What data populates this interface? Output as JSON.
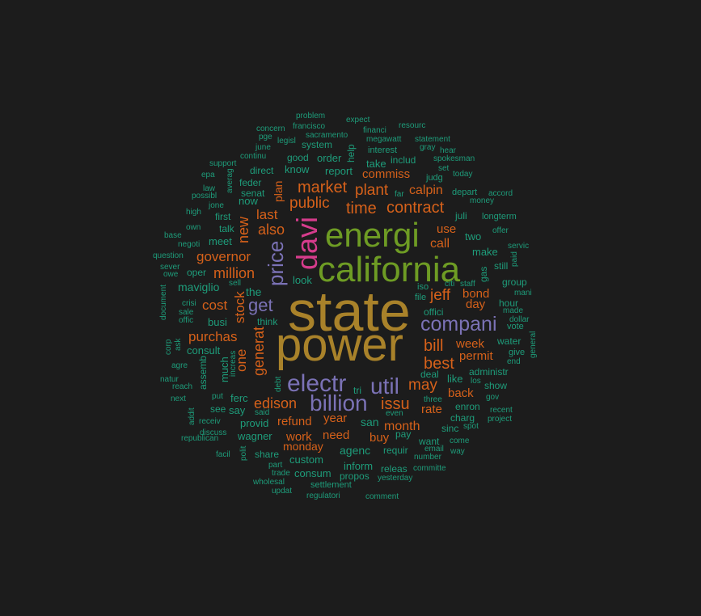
{
  "palette": {
    "background": "#1c1c1c",
    "tier1": "#a9822a",
    "tier2": "#6e9c24",
    "tier3": "#d63c8c",
    "tier4": "#7b72b6",
    "tier5": "#d6611a",
    "tier6": "#1e9c7a"
  },
  "words": [
    {
      "text": "state",
      "color": "#a9822a"
    },
    {
      "text": "power",
      "color": "#a9822a"
    },
    {
      "text": "california",
      "color": "#6e9c24"
    },
    {
      "text": "energi",
      "color": "#6e9c24"
    },
    {
      "text": "davi",
      "color": "#d63c8c"
    },
    {
      "text": "price",
      "color": "#7b72b6"
    },
    {
      "text": "compani",
      "color": "#7b72b6"
    },
    {
      "text": "electr",
      "color": "#7b72b6"
    },
    {
      "text": "billion",
      "color": "#7b72b6"
    },
    {
      "text": "util",
      "color": "#7b72b6"
    },
    {
      "text": "get",
      "color": "#7b72b6"
    },
    {
      "text": "contract",
      "color": "#d6611a"
    },
    {
      "text": "time",
      "color": "#d6611a"
    },
    {
      "text": "market",
      "color": "#d6611a"
    },
    {
      "text": "public",
      "color": "#d6611a"
    },
    {
      "text": "plant",
      "color": "#d6611a"
    },
    {
      "text": "calpin",
      "color": "#d6611a"
    },
    {
      "text": "governor",
      "color": "#d6611a"
    },
    {
      "text": "million",
      "color": "#d6611a"
    },
    {
      "text": "also",
      "color": "#d6611a"
    },
    {
      "text": "last",
      "color": "#d6611a"
    },
    {
      "text": "jeff",
      "color": "#d6611a"
    },
    {
      "text": "bill",
      "color": "#d6611a"
    },
    {
      "text": "best",
      "color": "#d6611a"
    },
    {
      "text": "may",
      "color": "#d6611a"
    },
    {
      "text": "issu",
      "color": "#d6611a"
    },
    {
      "text": "generat",
      "color": "#d6611a"
    },
    {
      "text": "edison",
      "color": "#d6611a"
    },
    {
      "text": "cost",
      "color": "#d6611a"
    },
    {
      "text": "purchas",
      "color": "#d6611a"
    },
    {
      "text": "new",
      "color": "#d6611a"
    },
    {
      "text": "stock",
      "color": "#d6611a"
    },
    {
      "text": "one",
      "color": "#d6611a"
    },
    {
      "text": "commiss",
      "color": "#d6611a"
    },
    {
      "text": "use",
      "color": "#d6611a"
    },
    {
      "text": "call",
      "color": "#d6611a"
    },
    {
      "text": "bond",
      "color": "#d6611a"
    },
    {
      "text": "day",
      "color": "#d6611a"
    },
    {
      "text": "week",
      "color": "#d6611a"
    },
    {
      "text": "permit",
      "color": "#d6611a"
    },
    {
      "text": "back",
      "color": "#d6611a"
    },
    {
      "text": "rate",
      "color": "#d6611a"
    },
    {
      "text": "refund",
      "color": "#d6611a"
    },
    {
      "text": "year",
      "color": "#d6611a"
    },
    {
      "text": "month",
      "color": "#d6611a"
    },
    {
      "text": "need",
      "color": "#d6611a"
    },
    {
      "text": "work",
      "color": "#d6611a"
    },
    {
      "text": "buy",
      "color": "#d6611a"
    },
    {
      "text": "monday",
      "color": "#d6611a"
    },
    {
      "text": "plan",
      "color": "#d6611a"
    },
    {
      "text": "problem",
      "color": "#1e9c7a"
    },
    {
      "text": "expect",
      "color": "#1e9c7a"
    },
    {
      "text": "concern",
      "color": "#1e9c7a"
    },
    {
      "text": "francisco",
      "color": "#1e9c7a"
    },
    {
      "text": "financi",
      "color": "#1e9c7a"
    },
    {
      "text": "resourc",
      "color": "#1e9c7a"
    },
    {
      "text": "pge",
      "color": "#1e9c7a"
    },
    {
      "text": "legisl",
      "color": "#1e9c7a"
    },
    {
      "text": "sacramento",
      "color": "#1e9c7a"
    },
    {
      "text": "megawatt",
      "color": "#1e9c7a"
    },
    {
      "text": "statement",
      "color": "#1e9c7a"
    },
    {
      "text": "june",
      "color": "#1e9c7a"
    },
    {
      "text": "system",
      "color": "#1e9c7a"
    },
    {
      "text": "interest",
      "color": "#1e9c7a"
    },
    {
      "text": "gray",
      "color": "#1e9c7a"
    },
    {
      "text": "hear",
      "color": "#1e9c7a"
    },
    {
      "text": "continu",
      "color": "#1e9c7a"
    },
    {
      "text": "good",
      "color": "#1e9c7a"
    },
    {
      "text": "order",
      "color": "#1e9c7a"
    },
    {
      "text": "includ",
      "color": "#1e9c7a"
    },
    {
      "text": "spokesman",
      "color": "#1e9c7a"
    },
    {
      "text": "help",
      "color": "#1e9c7a"
    },
    {
      "text": "support",
      "color": "#1e9c7a"
    },
    {
      "text": "direct",
      "color": "#1e9c7a"
    },
    {
      "text": "know",
      "color": "#1e9c7a"
    },
    {
      "text": "report",
      "color": "#1e9c7a"
    },
    {
      "text": "take",
      "color": "#1e9c7a"
    },
    {
      "text": "set",
      "color": "#1e9c7a"
    },
    {
      "text": "today",
      "color": "#1e9c7a"
    },
    {
      "text": "epa",
      "color": "#1e9c7a"
    },
    {
      "text": "averag",
      "color": "#1e9c7a"
    },
    {
      "text": "judg",
      "color": "#1e9c7a"
    },
    {
      "text": "law",
      "color": "#1e9c7a"
    },
    {
      "text": "feder",
      "color": "#1e9c7a"
    },
    {
      "text": "senat",
      "color": "#1e9c7a"
    },
    {
      "text": "far",
      "color": "#1e9c7a"
    },
    {
      "text": "depart",
      "color": "#1e9c7a"
    },
    {
      "text": "accord",
      "color": "#1e9c7a"
    },
    {
      "text": "possibl",
      "color": "#1e9c7a"
    },
    {
      "text": "now",
      "color": "#1e9c7a"
    },
    {
      "text": "money",
      "color": "#1e9c7a"
    },
    {
      "text": "jone",
      "color": "#1e9c7a"
    },
    {
      "text": "high",
      "color": "#1e9c7a"
    },
    {
      "text": "first",
      "color": "#1e9c7a"
    },
    {
      "text": "juli",
      "color": "#1e9c7a"
    },
    {
      "text": "longterm",
      "color": "#1e9c7a"
    },
    {
      "text": "own",
      "color": "#1e9c7a"
    },
    {
      "text": "talk",
      "color": "#1e9c7a"
    },
    {
      "text": "two",
      "color": "#1e9c7a"
    },
    {
      "text": "offer",
      "color": "#1e9c7a"
    },
    {
      "text": "base",
      "color": "#1e9c7a"
    },
    {
      "text": "meet",
      "color": "#1e9c7a"
    },
    {
      "text": "servic",
      "color": "#1e9c7a"
    },
    {
      "text": "negoti",
      "color": "#1e9c7a"
    },
    {
      "text": "make",
      "color": "#1e9c7a"
    },
    {
      "text": "paid",
      "color": "#1e9c7a"
    },
    {
      "text": "question",
      "color": "#1e9c7a"
    },
    {
      "text": "still",
      "color": "#1e9c7a"
    },
    {
      "text": "sever",
      "color": "#1e9c7a"
    },
    {
      "text": "gas",
      "color": "#1e9c7a"
    },
    {
      "text": "owe",
      "color": "#1e9c7a"
    },
    {
      "text": "oper",
      "color": "#1e9c7a"
    },
    {
      "text": "look",
      "color": "#1e9c7a"
    },
    {
      "text": "group",
      "color": "#1e9c7a"
    },
    {
      "text": "sell",
      "color": "#1e9c7a"
    },
    {
      "text": "citi",
      "color": "#1e9c7a"
    },
    {
      "text": "staff",
      "color": "#1e9c7a"
    },
    {
      "text": "maviglio",
      "color": "#1e9c7a"
    },
    {
      "text": "the",
      "color": "#1e9c7a"
    },
    {
      "text": "iso",
      "color": "#1e9c7a"
    },
    {
      "text": "mani",
      "color": "#1e9c7a"
    },
    {
      "text": "file",
      "color": "#1e9c7a"
    },
    {
      "text": "hour",
      "color": "#1e9c7a"
    },
    {
      "text": "crisi",
      "color": "#1e9c7a"
    },
    {
      "text": "made",
      "color": "#1e9c7a"
    },
    {
      "text": "document",
      "color": "#1e9c7a"
    },
    {
      "text": "sale",
      "color": "#1e9c7a"
    },
    {
      "text": "offici",
      "color": "#1e9c7a"
    },
    {
      "text": "dollar",
      "color": "#1e9c7a"
    },
    {
      "text": "offic",
      "color": "#1e9c7a"
    },
    {
      "text": "busi",
      "color": "#1e9c7a"
    },
    {
      "text": "think",
      "color": "#1e9c7a"
    },
    {
      "text": "vote",
      "color": "#1e9c7a"
    },
    {
      "text": "water",
      "color": "#1e9c7a"
    },
    {
      "text": "ask",
      "color": "#1e9c7a"
    },
    {
      "text": "general",
      "color": "#1e9c7a"
    },
    {
      "text": "corp",
      "color": "#1e9c7a"
    },
    {
      "text": "consult",
      "color": "#1e9c7a"
    },
    {
      "text": "give",
      "color": "#1e9c7a"
    },
    {
      "text": "increas",
      "color": "#1e9c7a"
    },
    {
      "text": "end",
      "color": "#1e9c7a"
    },
    {
      "text": "agre",
      "color": "#1e9c7a"
    },
    {
      "text": "assemb",
      "color": "#1e9c7a"
    },
    {
      "text": "much",
      "color": "#1e9c7a"
    },
    {
      "text": "administr",
      "color": "#1e9c7a"
    },
    {
      "text": "natur",
      "color": "#1e9c7a"
    },
    {
      "text": "deal",
      "color": "#1e9c7a"
    },
    {
      "text": "like",
      "color": "#1e9c7a"
    },
    {
      "text": "los",
      "color": "#1e9c7a"
    },
    {
      "text": "show",
      "color": "#1e9c7a"
    },
    {
      "text": "debt",
      "color": "#1e9c7a"
    },
    {
      "text": "reach",
      "color": "#1e9c7a"
    },
    {
      "text": "tri",
      "color": "#1e9c7a"
    },
    {
      "text": "ferc",
      "color": "#1e9c7a"
    },
    {
      "text": "put",
      "color": "#1e9c7a"
    },
    {
      "text": "gov",
      "color": "#1e9c7a"
    },
    {
      "text": "next",
      "color": "#1e9c7a"
    },
    {
      "text": "three",
      "color": "#1e9c7a"
    },
    {
      "text": "enron",
      "color": "#1e9c7a"
    },
    {
      "text": "say",
      "color": "#1e9c7a"
    },
    {
      "text": "see",
      "color": "#1e9c7a"
    },
    {
      "text": "said",
      "color": "#1e9c7a"
    },
    {
      "text": "even",
      "color": "#1e9c7a"
    },
    {
      "text": "recent",
      "color": "#1e9c7a"
    },
    {
      "text": "addit",
      "color": "#1e9c7a"
    },
    {
      "text": "charg",
      "color": "#1e9c7a"
    },
    {
      "text": "project",
      "color": "#1e9c7a"
    },
    {
      "text": "receiv",
      "color": "#1e9c7a"
    },
    {
      "text": "provid",
      "color": "#1e9c7a"
    },
    {
      "text": "san",
      "color": "#1e9c7a"
    },
    {
      "text": "sinc",
      "color": "#1e9c7a"
    },
    {
      "text": "spot",
      "color": "#1e9c7a"
    },
    {
      "text": "discuss",
      "color": "#1e9c7a"
    },
    {
      "text": "pay",
      "color": "#1e9c7a"
    },
    {
      "text": "wagner",
      "color": "#1e9c7a"
    },
    {
      "text": "republican",
      "color": "#1e9c7a"
    },
    {
      "text": "want",
      "color": "#1e9c7a"
    },
    {
      "text": "come",
      "color": "#1e9c7a"
    },
    {
      "text": "agenc",
      "color": "#1e9c7a"
    },
    {
      "text": "requir",
      "color": "#1e9c7a"
    },
    {
      "text": "email",
      "color": "#1e9c7a"
    },
    {
      "text": "way",
      "color": "#1e9c7a"
    },
    {
      "text": "polit",
      "color": "#1e9c7a"
    },
    {
      "text": "facil",
      "color": "#1e9c7a"
    },
    {
      "text": "share",
      "color": "#1e9c7a"
    },
    {
      "text": "custom",
      "color": "#1e9c7a"
    },
    {
      "text": "number",
      "color": "#1e9c7a"
    },
    {
      "text": "part",
      "color": "#1e9c7a"
    },
    {
      "text": "inform",
      "color": "#1e9c7a"
    },
    {
      "text": "releas",
      "color": "#1e9c7a"
    },
    {
      "text": "committe",
      "color": "#1e9c7a"
    },
    {
      "text": "trade",
      "color": "#1e9c7a"
    },
    {
      "text": "consum",
      "color": "#1e9c7a"
    },
    {
      "text": "propos",
      "color": "#1e9c7a"
    },
    {
      "text": "yesterday",
      "color": "#1e9c7a"
    },
    {
      "text": "wholesal",
      "color": "#1e9c7a"
    },
    {
      "text": "settlement",
      "color": "#1e9c7a"
    },
    {
      "text": "updat",
      "color": "#1e9c7a"
    },
    {
      "text": "regulatori",
      "color": "#1e9c7a"
    },
    {
      "text": "comment",
      "color": "#1e9c7a"
    }
  ]
}
